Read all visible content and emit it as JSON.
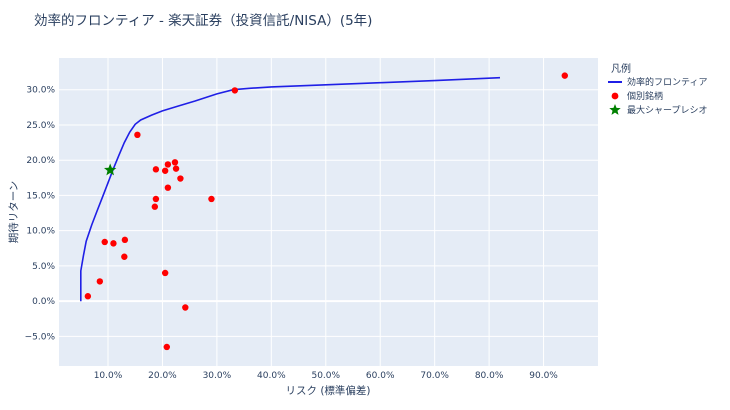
{
  "chart_data": {
    "type": "scatter",
    "title": "効率的フロンティア - 楽天証券（投資信託/NISA）(5年)",
    "xlabel": "リスク (標準偏差)",
    "ylabel": "期待リターン",
    "xlim": [
      0.01,
      1.0
    ],
    "ylim": [
      -0.092,
      0.345
    ],
    "x_ticks": [
      0.1,
      0.2,
      0.3,
      0.4,
      0.5,
      0.6,
      0.7,
      0.8,
      0.9
    ],
    "x_tick_labels": [
      "10.0%",
      "20.0%",
      "30.0%",
      "40.0%",
      "50.0%",
      "60.0%",
      "70.0%",
      "80.0%",
      "90.0%"
    ],
    "y_ticks": [
      -0.05,
      0.0,
      0.05,
      0.1,
      0.15,
      0.2,
      0.25,
      0.3
    ],
    "y_tick_labels": [
      "−5.0%",
      "0.0%",
      "5.0%",
      "10.0%",
      "15.0%",
      "20.0%",
      "25.0%",
      "30.0%"
    ],
    "grid": true,
    "legend": {
      "title": "凡例",
      "placement": "right",
      "entries": [
        "効率的フロンティア",
        "個別銘柄",
        "最大シャープレシオ"
      ]
    },
    "colors": {
      "frontier": "#1f1fe6",
      "assets": "#ff0000",
      "max_sharpe": "#008000",
      "plot_bg": "#e5ecf6",
      "grid": "#ffffff",
      "text": "#2a3f5f"
    },
    "series": [
      {
        "name": "効率的フロンティア",
        "kind": "line",
        "points": [
          [
            0.05,
            0.0
          ],
          [
            0.05,
            0.043
          ],
          [
            0.055,
            0.065
          ],
          [
            0.06,
            0.085
          ],
          [
            0.07,
            0.108
          ],
          [
            0.08,
            0.128
          ],
          [
            0.09,
            0.148
          ],
          [
            0.1,
            0.168
          ],
          [
            0.11,
            0.188
          ],
          [
            0.12,
            0.207
          ],
          [
            0.13,
            0.225
          ],
          [
            0.14,
            0.24
          ],
          [
            0.15,
            0.251
          ],
          [
            0.16,
            0.257
          ],
          [
            0.18,
            0.264
          ],
          [
            0.2,
            0.27
          ],
          [
            0.23,
            0.277
          ],
          [
            0.26,
            0.284
          ],
          [
            0.3,
            0.294
          ],
          [
            0.33,
            0.3
          ],
          [
            0.36,
            0.302
          ],
          [
            0.4,
            0.304
          ],
          [
            0.5,
            0.307
          ],
          [
            0.6,
            0.31
          ],
          [
            0.7,
            0.313
          ],
          [
            0.82,
            0.317
          ]
        ]
      },
      {
        "name": "個別銘柄",
        "kind": "markers",
        "points": [
          [
            0.063,
            0.007
          ],
          [
            0.085,
            0.028
          ],
          [
            0.094,
            0.084
          ],
          [
            0.11,
            0.082
          ],
          [
            0.131,
            0.087
          ],
          [
            0.13,
            0.063
          ],
          [
            0.154,
            0.236
          ],
          [
            0.186,
            0.134
          ],
          [
            0.188,
            0.145
          ],
          [
            0.188,
            0.187
          ],
          [
            0.205,
            0.185
          ],
          [
            0.21,
            0.194
          ],
          [
            0.21,
            0.161
          ],
          [
            0.223,
            0.197
          ],
          [
            0.225,
            0.188
          ],
          [
            0.233,
            0.174
          ],
          [
            0.205,
            0.04
          ],
          [
            0.242,
            -0.009
          ],
          [
            0.208,
            -0.065
          ],
          [
            0.29,
            0.145
          ],
          [
            0.333,
            0.299
          ],
          [
            0.939,
            0.32
          ]
        ]
      },
      {
        "name": "最大シャープレシオ",
        "kind": "star",
        "points": [
          [
            0.104,
            0.186
          ]
        ]
      }
    ]
  }
}
